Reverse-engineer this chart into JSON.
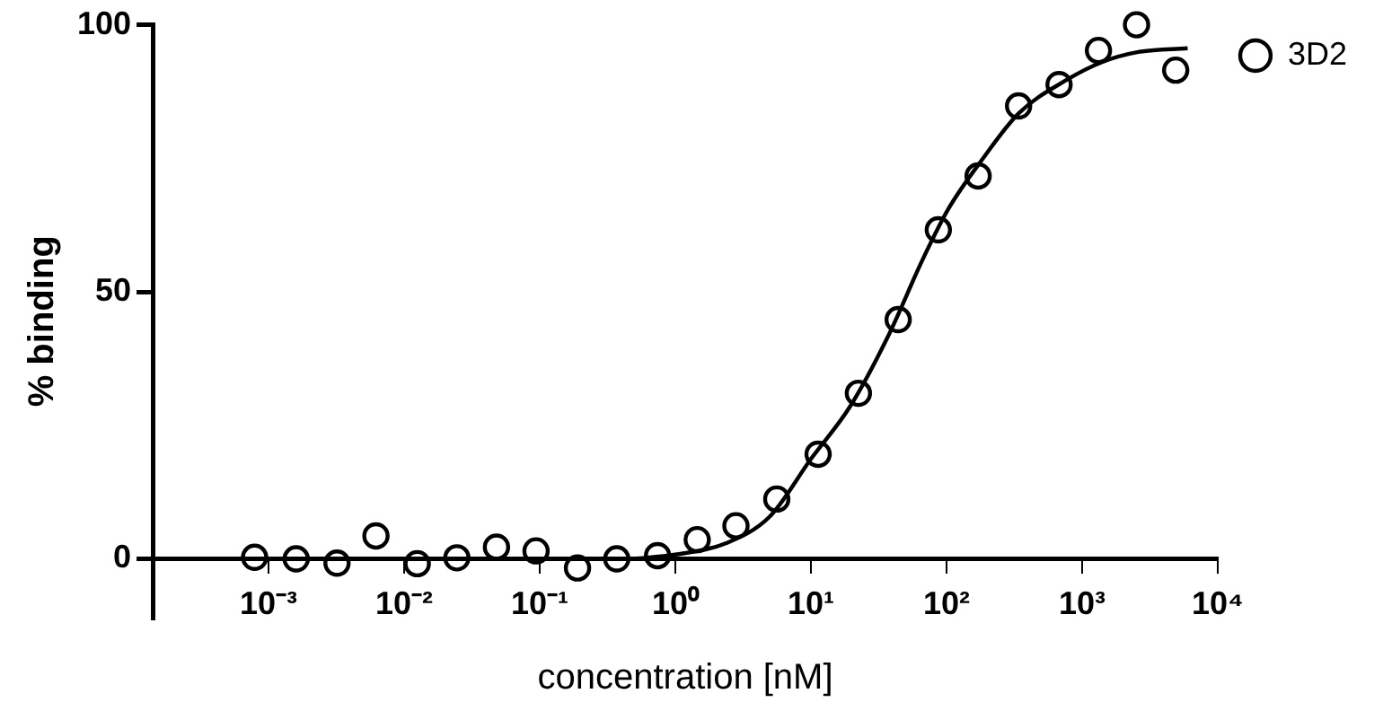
{
  "chart_data": {
    "type": "scatter",
    "xlabel": "concentration [nM]",
    "ylabel": "% binding",
    "log": "x",
    "xlim": [
      0.00014,
      10000
    ],
    "ylim": [
      -11,
      100
    ],
    "xticks": [
      {
        "value": 0.001,
        "label": "10⁻³"
      },
      {
        "value": 0.01,
        "label": "10⁻²"
      },
      {
        "value": 0.1,
        "label": "10⁻¹"
      },
      {
        "value": 1,
        "label": "10⁰"
      },
      {
        "value": 10,
        "label": "10¹"
      },
      {
        "value": 100,
        "label": "10²"
      },
      {
        "value": 1000,
        "label": "10³"
      },
      {
        "value": 10000,
        "label": "10⁴"
      }
    ],
    "yticks": [
      0,
      50,
      100
    ],
    "grid": false,
    "legend": "top right",
    "marker": "circle",
    "line_style": "solid",
    "series": [
      {
        "name": "3D2",
        "color": "#000000",
        "x": [
          0.00079,
          0.0016,
          0.0032,
          0.0062,
          0.0125,
          0.0245,
          0.048,
          0.094,
          0.19,
          0.37,
          0.74,
          1.45,
          2.8,
          5.6,
          11.3,
          22.4,
          44,
          87,
          171,
          340,
          676,
          1320,
          2520,
          4900
        ],
        "values": [
          0.3,
          0,
          -0.8,
          4.3,
          -0.9,
          0.2,
          2.2,
          1.5,
          -1.7,
          0,
          0.6,
          3.6,
          6.2,
          11.2,
          19.6,
          31,
          44.8,
          61.6,
          71.7,
          84.8,
          88.8,
          95.2,
          100,
          91.5
        ]
      },
      {
        "color": "#000000",
        "type": "line",
        "marker": "none",
        "x": [
          0.49,
          1,
          2.4,
          5,
          10,
          19.4,
          36.6,
          68,
          103,
          180,
          340,
          760,
          1400,
          2600,
          6000
        ],
        "values": [
          0,
          0.8,
          3,
          8,
          18.7,
          28.5,
          41.4,
          56.5,
          65.5,
          74.5,
          83.4,
          89.6,
          93,
          94.9,
          95.6
        ]
      }
    ]
  }
}
